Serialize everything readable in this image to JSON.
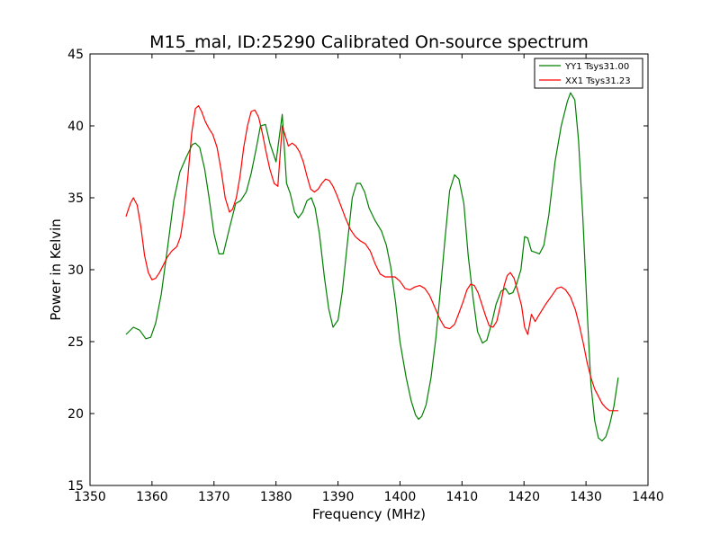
{
  "chart_data": {
    "type": "line",
    "title": "M15_mal, ID:25290 Calibrated On-source spectrum",
    "xlabel": "Frequency (MHz)",
    "ylabel": "Power in Kelvin",
    "xlim": [
      1350,
      1440
    ],
    "ylim": [
      15,
      45
    ],
    "xticks": [
      1350,
      1360,
      1370,
      1380,
      1390,
      1400,
      1410,
      1420,
      1430,
      1440
    ],
    "yticks": [
      15,
      20,
      25,
      30,
      35,
      40,
      45
    ],
    "grid": false,
    "legend_position": "top-right",
    "series": [
      {
        "name": "YY1 Tsys31.00",
        "color": "#008000",
        "x": [
          1355.8,
          1357.0,
          1358.0,
          1359.0,
          1359.8,
          1360.6,
          1361.5,
          1362.5,
          1363.5,
          1364.5,
          1365.5,
          1366.5,
          1367.0,
          1367.7,
          1368.5,
          1369.2,
          1370.0,
          1370.8,
          1371.5,
          1372.5,
          1373.5,
          1374.3,
          1375.2,
          1376.0,
          1376.8,
          1377.5,
          1378.3,
          1379.0,
          1380.0,
          1381.0,
          1381.7,
          1382.3,
          1383.0,
          1383.6,
          1384.3,
          1385.0,
          1385.7,
          1386.3,
          1387.0,
          1387.8,
          1388.5,
          1389.2,
          1390.0,
          1390.7,
          1391.5,
          1392.3,
          1393.0,
          1393.6,
          1394.3,
          1395.0,
          1396.0,
          1397.0,
          1397.8,
          1398.5,
          1399.3,
          1400.0,
          1401.0,
          1401.8,
          1402.5,
          1403.0,
          1403.5,
          1404.2,
          1405.0,
          1405.8,
          1406.5,
          1407.3,
          1408.0,
          1408.8,
          1409.5,
          1410.3,
          1411.0,
          1411.8,
          1412.5,
          1413.3,
          1414.0,
          1414.8,
          1415.5,
          1416.3,
          1417.0,
          1417.6,
          1418.2,
          1418.8,
          1419.5,
          1420.1,
          1420.6,
          1421.2,
          1421.9,
          1422.5,
          1423.2,
          1424.0,
          1425.0,
          1426.0,
          1427.0,
          1427.5,
          1428.2,
          1428.8,
          1429.5,
          1430.2,
          1430.8,
          1431.4,
          1432.0,
          1432.6,
          1433.2,
          1433.8,
          1434.5,
          1435.2
        ],
        "y": [
          25.5,
          26.0,
          25.8,
          25.2,
          25.3,
          26.3,
          28.3,
          31.5,
          34.8,
          36.8,
          37.8,
          38.7,
          38.8,
          38.5,
          37.0,
          35.0,
          32.5,
          31.1,
          31.1,
          32.9,
          34.6,
          34.8,
          35.4,
          36.7,
          38.4,
          40.0,
          40.1,
          38.8,
          37.5,
          40.8,
          36.0,
          35.3,
          34.0,
          33.6,
          34.0,
          34.8,
          35.0,
          34.3,
          32.5,
          29.5,
          27.3,
          26.0,
          26.5,
          28.5,
          31.8,
          35.0,
          36.0,
          36.0,
          35.4,
          34.3,
          33.4,
          32.7,
          31.7,
          30.2,
          27.7,
          25.0,
          22.5,
          20.9,
          19.9,
          19.6,
          19.8,
          20.6,
          22.5,
          25.3,
          28.5,
          32.3,
          35.5,
          36.6,
          36.3,
          34.6,
          31.0,
          28.0,
          25.7,
          24.9,
          25.1,
          26.3,
          27.6,
          28.5,
          28.7,
          28.3,
          28.4,
          29.0,
          30.0,
          32.3,
          32.2,
          31.3,
          31.2,
          31.1,
          31.7,
          33.8,
          37.5,
          40.0,
          41.7,
          42.3,
          41.8,
          39.0,
          33.5,
          27.0,
          22.0,
          19.5,
          18.3,
          18.1,
          18.4,
          19.2,
          20.5,
          22.5
        ]
      },
      {
        "name": "XX1 Tsys31.23",
        "color": "#ff0000",
        "x": [
          1355.8,
          1356.5,
          1357.0,
          1357.6,
          1358.2,
          1358.8,
          1359.4,
          1360.0,
          1360.6,
          1361.2,
          1361.8,
          1362.5,
          1363.2,
          1364.0,
          1364.6,
          1365.2,
          1365.8,
          1366.4,
          1367.0,
          1367.5,
          1368.0,
          1368.6,
          1369.2,
          1369.8,
          1370.5,
          1371.2,
          1371.8,
          1372.5,
          1373.0,
          1373.6,
          1374.2,
          1374.8,
          1375.4,
          1376.0,
          1376.6,
          1377.2,
          1377.8,
          1378.4,
          1379.0,
          1379.7,
          1380.3,
          1381.0,
          1381.5,
          1382.0,
          1382.6,
          1383.2,
          1383.8,
          1384.4,
          1385.0,
          1385.6,
          1386.2,
          1386.8,
          1387.4,
          1388.0,
          1388.6,
          1389.2,
          1389.8,
          1390.5,
          1391.2,
          1392.0,
          1392.8,
          1393.6,
          1394.4,
          1395.2,
          1396.0,
          1396.8,
          1397.6,
          1398.4,
          1399.2,
          1400.0,
          1400.8,
          1401.6,
          1402.4,
          1403.2,
          1404.0,
          1404.8,
          1405.6,
          1406.4,
          1407.2,
          1408.0,
          1408.8,
          1409.6,
          1410.2,
          1410.8,
          1411.4,
          1412.0,
          1412.6,
          1413.2,
          1413.8,
          1414.4,
          1415.0,
          1415.6,
          1416.2,
          1416.8,
          1417.3,
          1417.8,
          1418.4,
          1419.0,
          1419.6,
          1420.1,
          1420.6,
          1421.2,
          1421.8,
          1422.5,
          1423.5,
          1424.5,
          1425.3,
          1426.0,
          1426.7,
          1427.5,
          1428.3,
          1429.0,
          1429.6,
          1430.2,
          1430.8,
          1431.4,
          1432.0,
          1432.6,
          1433.2,
          1433.8,
          1434.5,
          1435.2
        ],
        "y": [
          33.7,
          34.6,
          35.0,
          34.5,
          33.0,
          31.0,
          29.8,
          29.3,
          29.4,
          29.8,
          30.3,
          30.9,
          31.3,
          31.6,
          32.3,
          34.0,
          36.5,
          39.5,
          41.2,
          41.4,
          41.0,
          40.3,
          39.8,
          39.4,
          38.5,
          36.8,
          35.0,
          34.0,
          34.2,
          35.0,
          36.5,
          38.5,
          40.0,
          41.0,
          41.1,
          40.6,
          39.5,
          38.2,
          37.0,
          36.0,
          35.8,
          40.0,
          39.3,
          38.6,
          38.8,
          38.6,
          38.2,
          37.5,
          36.5,
          35.6,
          35.4,
          35.6,
          36.0,
          36.3,
          36.2,
          35.8,
          35.2,
          34.4,
          33.6,
          32.8,
          32.3,
          32.0,
          31.8,
          31.3,
          30.4,
          29.7,
          29.5,
          29.5,
          29.5,
          29.2,
          28.7,
          28.6,
          28.8,
          28.9,
          28.7,
          28.2,
          27.4,
          26.6,
          26.0,
          25.9,
          26.2,
          27.1,
          27.8,
          28.6,
          29.0,
          28.9,
          28.4,
          27.6,
          26.8,
          26.1,
          26.0,
          26.4,
          27.5,
          28.9,
          29.6,
          29.8,
          29.4,
          28.5,
          27.5,
          26.0,
          25.5,
          26.9,
          26.4,
          26.9,
          27.6,
          28.2,
          28.7,
          28.8,
          28.6,
          28.1,
          27.2,
          26.0,
          24.8,
          23.5,
          22.5,
          21.7,
          21.2,
          20.7,
          20.4,
          20.2,
          20.2,
          20.2
        ]
      }
    ]
  }
}
